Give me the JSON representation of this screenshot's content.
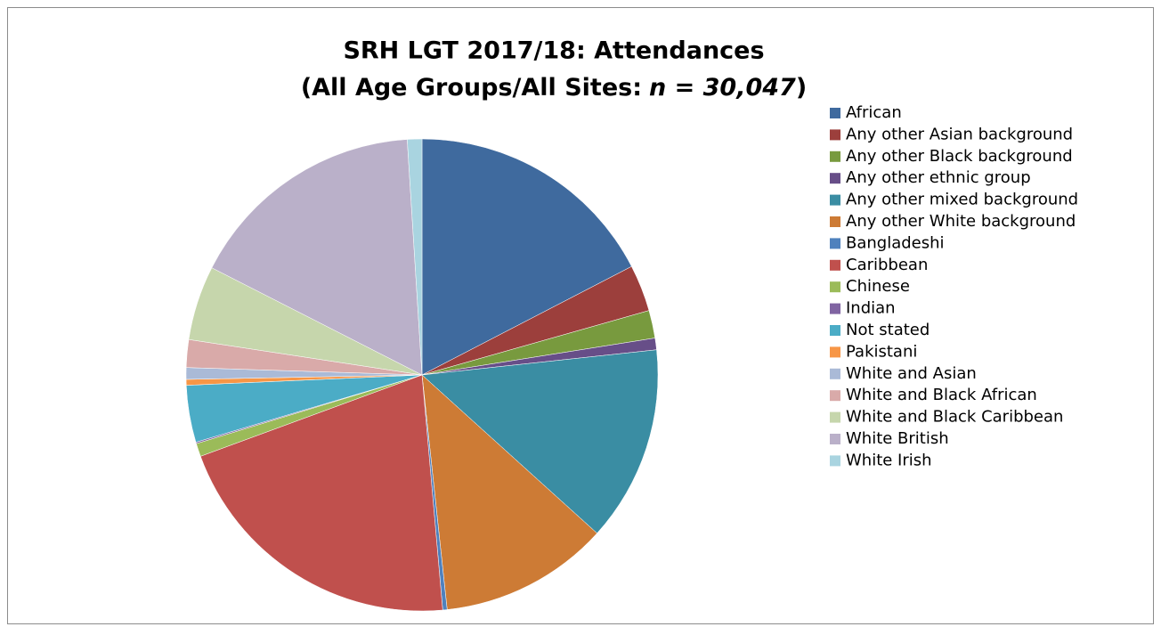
{
  "chart_data": {
    "type": "pie",
    "title": "SRH LGT 2017/18: Attendances",
    "subtitle": [
      "(All Age Groups/All Sites:",
      "n = 30,047",
      ")"
    ],
    "categories": [
      "African",
      "Any other Asian background",
      "Any other Black background",
      "Any other ethnic group",
      "Any other mixed background",
      "Any other White background",
      "Bangladeshi",
      "Caribbean",
      "Chinese",
      "Indian",
      "Not stated",
      "Pakistani",
      "White and Asian",
      "White and Black African",
      "White and Black Caribbean",
      "White British",
      "White Irish"
    ],
    "values": [
      17.4,
      3.2,
      1.9,
      0.8,
      13.4,
      11.6,
      0.3,
      20.8,
      0.9,
      0.1,
      3.9,
      0.4,
      0.8,
      1.9,
      5.1,
      16.5,
      1.0
    ],
    "colors": [
      "#3F6A9E",
      "#9C3F3C",
      "#789A3E",
      "#674E88",
      "#3A8DA3",
      "#CD7B35",
      "#4F81BD",
      "#C0504D",
      "#9BBB59",
      "#8064A2",
      "#4BACC6",
      "#F79646",
      "#AABAD7",
      "#D9AAA9",
      "#C6D6AC",
      "#BAB0C9",
      "#A9D4E0"
    ],
    "legend": "right"
  }
}
